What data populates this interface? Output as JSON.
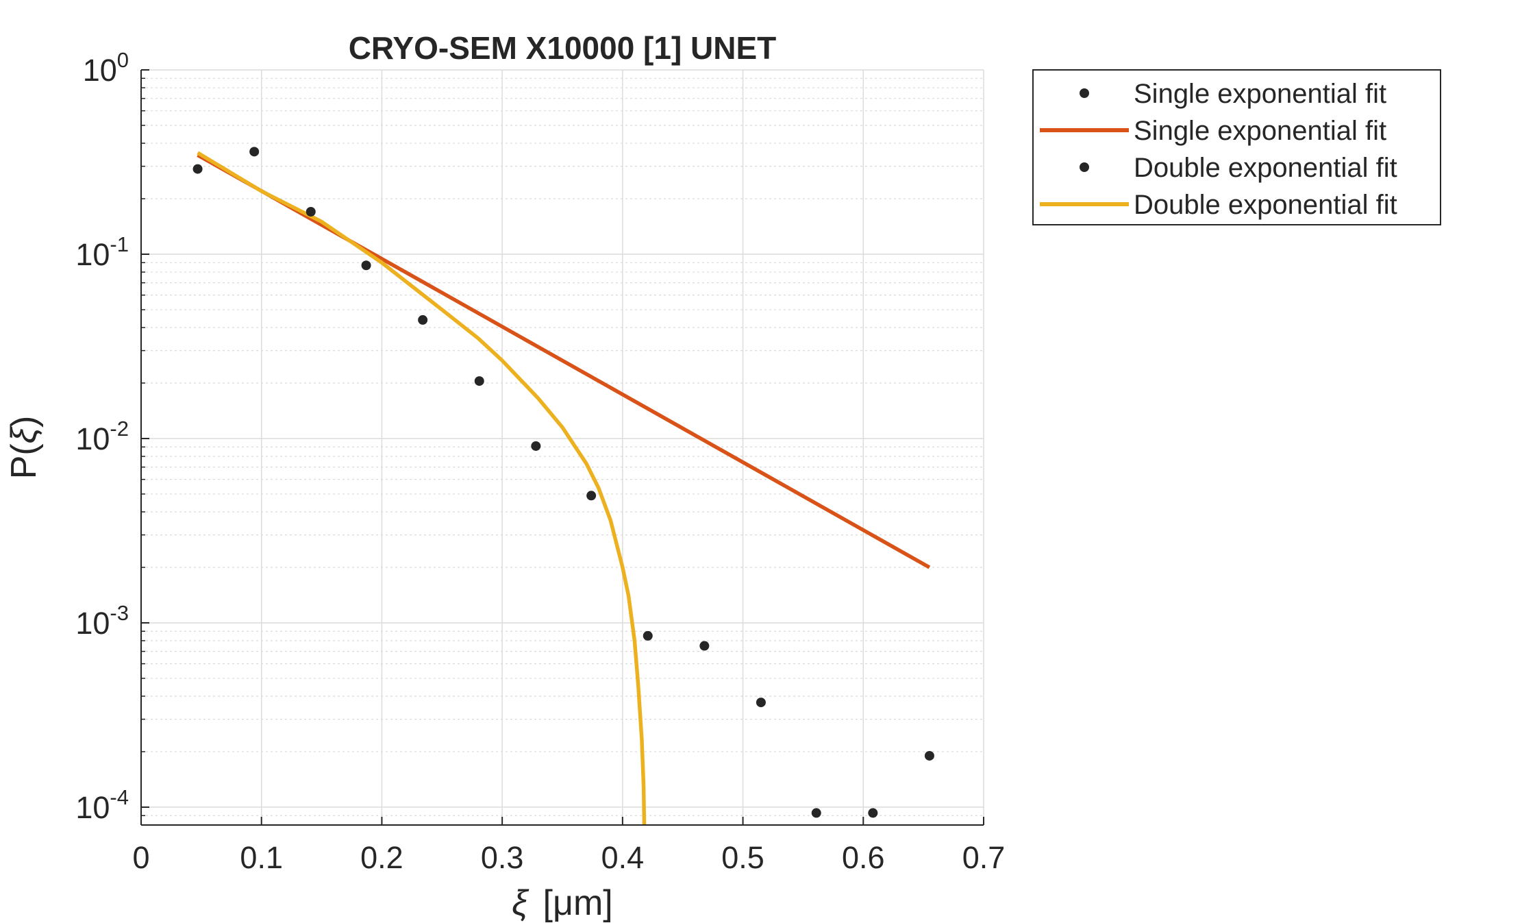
{
  "chart_data": {
    "type": "line",
    "title": "CRYO-SEM X10000 [1] UNET",
    "xlabel": {
      "symbol": "ξ",
      "unit": "[μm]"
    },
    "ylabel": {
      "prefix": "P(",
      "symbol": "ξ",
      "suffix": ")"
    },
    "xlim": [
      0,
      0.7
    ],
    "ylim": [
      8e-05,
      1
    ],
    "yscale": "log",
    "grid": true,
    "minor_grid": true,
    "legend_position": "outside-top-right",
    "x_ticks": [
      {
        "value": 0,
        "label": "0"
      },
      {
        "value": 0.1,
        "label": "0.1"
      },
      {
        "value": 0.2,
        "label": "0.2"
      },
      {
        "value": 0.3,
        "label": "0.3"
      },
      {
        "value": 0.4,
        "label": "0.4"
      },
      {
        "value": 0.5,
        "label": "0.5"
      },
      {
        "value": 0.6,
        "label": "0.6"
      },
      {
        "value": 0.7,
        "label": "0.7"
      }
    ],
    "y_ticks": [
      {
        "value": 1,
        "base": "10",
        "exp": "0"
      },
      {
        "value": 0.1,
        "base": "10",
        "exp": "-1"
      },
      {
        "value": 0.01,
        "base": "10",
        "exp": "-2"
      },
      {
        "value": 0.001,
        "base": "10",
        "exp": "-3"
      },
      {
        "value": 0.0001,
        "base": "10",
        "exp": "-4"
      }
    ],
    "series": [
      {
        "name": "Single exponential fit",
        "kind": "scatter",
        "color": "#262626",
        "x": [
          0.047,
          0.094,
          0.141,
          0.187,
          0.234,
          0.281,
          0.328,
          0.374,
          0.421,
          0.468,
          0.515,
          0.561,
          0.608,
          0.655
        ],
        "y": [
          0.29,
          0.36,
          0.17,
          0.087,
          0.044,
          0.0205,
          0.0091,
          0.0049,
          0.00085,
          0.00075,
          0.00037,
          9.3e-05,
          9.3e-05,
          0.00019
        ]
      },
      {
        "name": "Single exponential fit",
        "kind": "line",
        "color": "#D95319",
        "x": [
          0.047,
          0.655
        ],
        "y": [
          0.345,
          0.002
        ]
      },
      {
        "name": "Double exponential fit",
        "kind": "scatter",
        "color": "#262626",
        "x": [],
        "y": []
      },
      {
        "name": "Double exponential fit",
        "kind": "line",
        "color": "#EDB120",
        "x": [
          0.047,
          0.1,
          0.15,
          0.2,
          0.25,
          0.28,
          0.3,
          0.33,
          0.35,
          0.37,
          0.38,
          0.39,
          0.4,
          0.405,
          0.41,
          0.413,
          0.416,
          0.4175,
          0.418
        ],
        "y": [
          0.355,
          0.22,
          0.15,
          0.09,
          0.05,
          0.035,
          0.0265,
          0.0165,
          0.0115,
          0.0073,
          0.0054,
          0.0036,
          0.002,
          0.0014,
          0.0008,
          0.00046,
          0.00023,
          0.00013,
          8e-05
        ]
      }
    ]
  }
}
